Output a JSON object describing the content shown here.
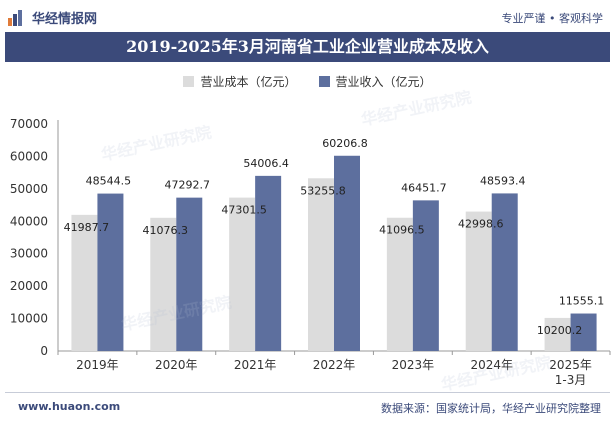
{
  "header": {
    "brand": "华经情报网",
    "slogan": "专业严谨 • 客观科学"
  },
  "title": "2019-2025年3月河南省工业企业营业成本及收入",
  "watermark": "华经产业研究院",
  "footer": {
    "website": "www.huaon.com",
    "source": "数据来源：国家统计局，华经产业研究院整理"
  },
  "colors": {
    "cost": "#dcdcdc",
    "revenue": "#5d6f9e",
    "header": "#3b4a7a"
  },
  "chart_data": {
    "type": "bar",
    "categories": [
      "2019年",
      "2020年",
      "2021年",
      "2022年",
      "2023年",
      "2024年",
      "2025年\n1-3月"
    ],
    "series": [
      {
        "name": "营业成本（亿元）",
        "values": [
          41987.7,
          41076.3,
          47301.5,
          53255.8,
          41096.5,
          42998.6,
          10200.2
        ]
      },
      {
        "name": "营业收入（亿元）",
        "values": [
          48544.5,
          47292.7,
          54006.4,
          60206.8,
          46451.7,
          48593.4,
          11555.1
        ]
      }
    ],
    "yticks": [
      "0",
      "10000",
      "20000",
      "30000",
      "40000",
      "50000",
      "60000",
      "70000"
    ],
    "ylim": [
      0,
      70000
    ],
    "grid": false,
    "legend_position": "top"
  }
}
